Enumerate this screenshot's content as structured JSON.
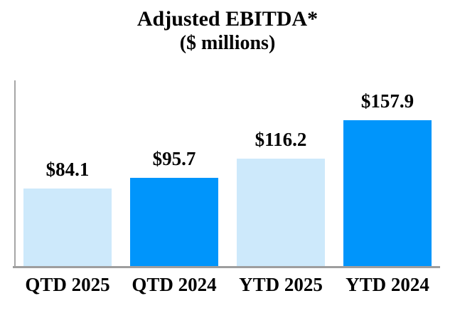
{
  "chart_data": {
    "type": "bar",
    "title": "Adjusted EBITDA*",
    "subtitle": "($ millions)",
    "categories": [
      "QTD 2025",
      "QTD 2024",
      "YTD 2025",
      "YTD 2024"
    ],
    "values": [
      84.1,
      95.7,
      116.2,
      157.9
    ],
    "value_labels": [
      "$84.1",
      "$95.7",
      "$116.2",
      "$157.9"
    ],
    "bar_colors": [
      "#CDE9FB",
      "#0095FB",
      "#CDE9FB",
      "#0095FB"
    ],
    "xlabel": "",
    "ylabel": "",
    "ylim": [
      0,
      202
    ],
    "grid": false,
    "legend": "none"
  },
  "colors": {
    "light_blue": "#CDE9FB",
    "bright_blue": "#0095FB",
    "axis_gray": "#A6A6A6",
    "label_black": "#000000"
  }
}
